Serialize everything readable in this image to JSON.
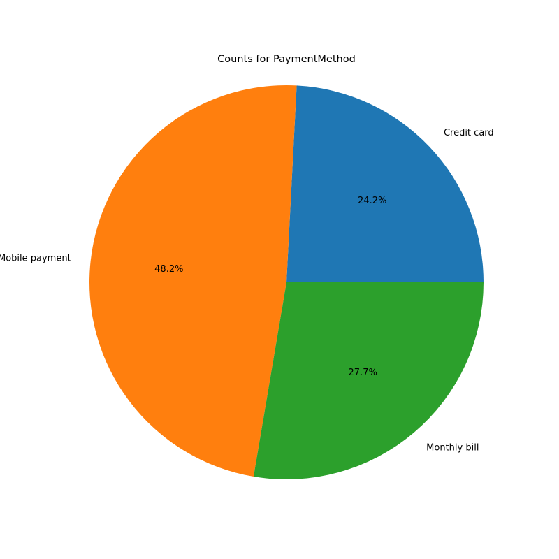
{
  "chart_data": {
    "type": "pie",
    "title": "Counts for PaymentMethod",
    "categories": [
      "Credit card",
      "Mobile payment",
      "Monthly bill"
    ],
    "values": [
      24.2,
      48.2,
      27.7
    ],
    "value_labels": [
      "24.2%",
      "48.2%",
      "27.7%"
    ],
    "colors": [
      "#1f77b4",
      "#ff7f0e",
      "#2ca02c"
    ],
    "start_angle_deg": 0,
    "direction": "counterclockwise",
    "legend": "none"
  }
}
